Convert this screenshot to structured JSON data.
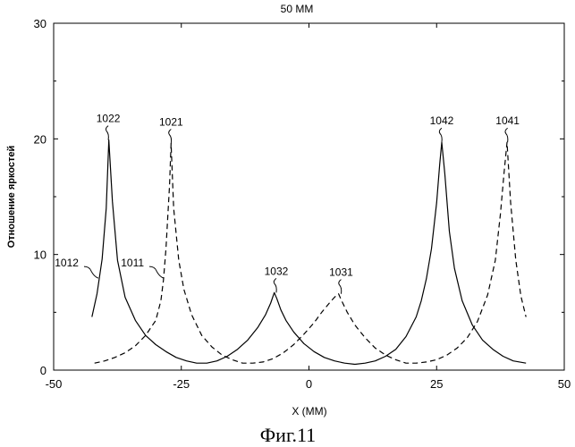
{
  "chart_data": {
    "type": "line",
    "title": "50 MM",
    "xlabel": "X (MM)",
    "ylabel": "Отношение яркостей",
    "xlim": [
      -50,
      50
    ],
    "ylim": [
      0,
      30
    ],
    "x_ticks": [
      "-50",
      "-25",
      "0",
      "25",
      "50"
    ],
    "y_ticks": [
      "0",
      "10",
      "20",
      "30"
    ],
    "grid": false,
    "legend": "none",
    "series": [
      {
        "name": "1012",
        "style": "solid",
        "x": [
          -42.5,
          -41.5,
          -40.5,
          -39.7,
          -39.2,
          -38.5,
          -37.5,
          -36.0,
          -34.0,
          -32.0,
          -30.0,
          -28.0,
          -26.0,
          -24.0,
          -22.0,
          -20.0,
          -18.0,
          -16.0,
          -14.0,
          -12.0,
          -10.0,
          -8.5,
          -7.5,
          -6.8,
          -6.3,
          -5.5,
          -4.5,
          -3.0,
          -1.0,
          1.0,
          3.0,
          5.0,
          7.0,
          9.0,
          11.0,
          13.0,
          15.0,
          17.0,
          19.0,
          21.0,
          22.0,
          23.0,
          24.0,
          25.0,
          25.6,
          26.0,
          26.6,
          27.5,
          28.5,
          30.0,
          32.0,
          34.0,
          36.0,
          38.0,
          40.0,
          42.5
        ],
        "y": [
          4.6,
          6.6,
          9.6,
          14.0,
          19.9,
          14.6,
          9.5,
          6.3,
          4.3,
          3.0,
          2.2,
          1.6,
          1.1,
          0.8,
          0.6,
          0.6,
          0.8,
          1.2,
          1.8,
          2.6,
          3.7,
          4.8,
          5.8,
          6.7,
          6.2,
          5.2,
          4.3,
          3.3,
          2.3,
          1.6,
          1.1,
          0.8,
          0.6,
          0.5,
          0.6,
          0.8,
          1.2,
          1.8,
          2.9,
          4.6,
          6.0,
          7.9,
          10.5,
          14.5,
          17.8,
          19.7,
          17.0,
          12.0,
          8.8,
          6.0,
          3.9,
          2.6,
          1.8,
          1.2,
          0.8,
          0.6
        ]
      },
      {
        "name": "1011",
        "style": "dashed",
        "x": [
          -42.0,
          -40.0,
          -38.0,
          -36.0,
          -34.0,
          -32.0,
          -30.0,
          -29.0,
          -28.5,
          -28.0,
          -27.3,
          -27.0,
          -26.5,
          -25.5,
          -24.5,
          -23.0,
          -21.0,
          -19.0,
          -17.0,
          -15.0,
          -13.0,
          -11.0,
          -9.0,
          -7.0,
          -5.0,
          -3.0,
          -1.0,
          1.0,
          2.5,
          4.0,
          5.0,
          5.8,
          6.4,
          7.5,
          9.0,
          11.0,
          13.0,
          15.0,
          17.0,
          19.0,
          21.0,
          23.0,
          25.0,
          27.0,
          29.0,
          31.0,
          33.0,
          35.0,
          36.5,
          37.5,
          38.2,
          38.8,
          39.5,
          40.5,
          41.5,
          42.5
        ],
        "y": [
          0.6,
          0.8,
          1.1,
          1.5,
          2.1,
          3.0,
          4.3,
          6.0,
          7.8,
          10.5,
          16.0,
          19.6,
          14.0,
          9.5,
          7.0,
          4.8,
          3.0,
          2.0,
          1.3,
          0.9,
          0.6,
          0.6,
          0.7,
          1.0,
          1.5,
          2.2,
          3.1,
          4.1,
          5.0,
          5.8,
          6.3,
          6.6,
          6.0,
          5.0,
          3.9,
          2.8,
          1.9,
          1.3,
          0.9,
          0.6,
          0.6,
          0.7,
          0.9,
          1.3,
          1.9,
          2.8,
          4.2,
          6.5,
          9.5,
          13.5,
          17.0,
          19.7,
          14.5,
          9.5,
          6.4,
          4.6
        ]
      }
    ],
    "annotations": [
      {
        "text": "1022",
        "x": -39.3,
        "y": 19.9
      },
      {
        "text": "1021",
        "x": -27.0,
        "y": 19.6
      },
      {
        "text": "1012",
        "x": -41.6,
        "y": 8.8
      },
      {
        "text": "1011",
        "x": -28.8,
        "y": 8.8
      },
      {
        "text": "1032",
        "x": -6.4,
        "y": 6.7
      },
      {
        "text": "1031",
        "x": 6.3,
        "y": 6.6
      },
      {
        "text": "1042",
        "x": 26.0,
        "y": 19.7
      },
      {
        "text": "1041",
        "x": 38.9,
        "y": 19.7
      }
    ]
  },
  "caption": "Фиг.11"
}
